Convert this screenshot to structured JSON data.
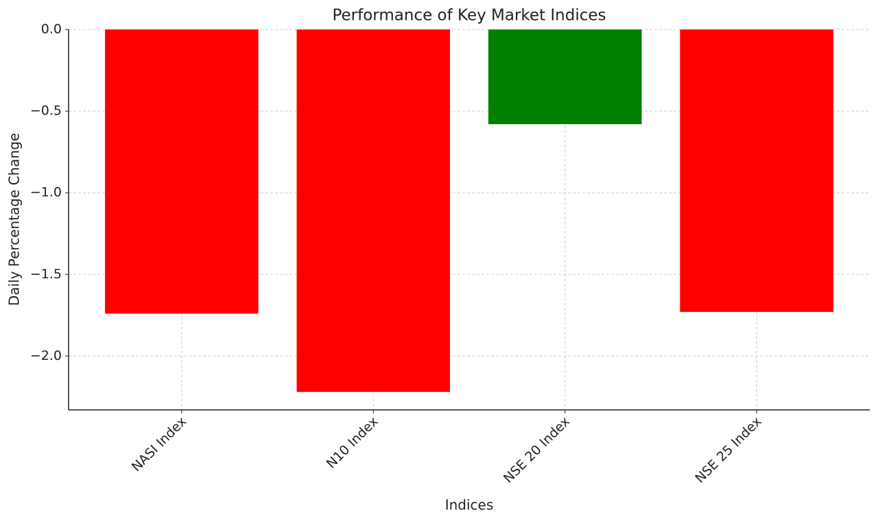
{
  "chart_data": {
    "type": "bar",
    "title": "Performance of Key Market Indices",
    "x_label": "Indices",
    "y_label": "Daily Percentage Change",
    "categories": [
      "NASI Index",
      "N10 Index",
      "NSE 20 Index",
      "NSE 25 Index"
    ],
    "values": [
      -1.74,
      -2.22,
      -0.58,
      -1.73
    ],
    "colors": [
      "#ff0000",
      "#ff0000",
      "#008000",
      "#ff0000"
    ],
    "ylim": [
      -2.33,
      0
    ],
    "yticks": [
      {
        "value": -2.0,
        "label": "−2.0"
      },
      {
        "value": -1.5,
        "label": "−1.5"
      },
      {
        "value": -1.0,
        "label": "−1.0"
      },
      {
        "value": -0.5,
        "label": "−0.5"
      },
      {
        "value": 0,
        "label": "0.0"
      }
    ],
    "grid": true
  }
}
